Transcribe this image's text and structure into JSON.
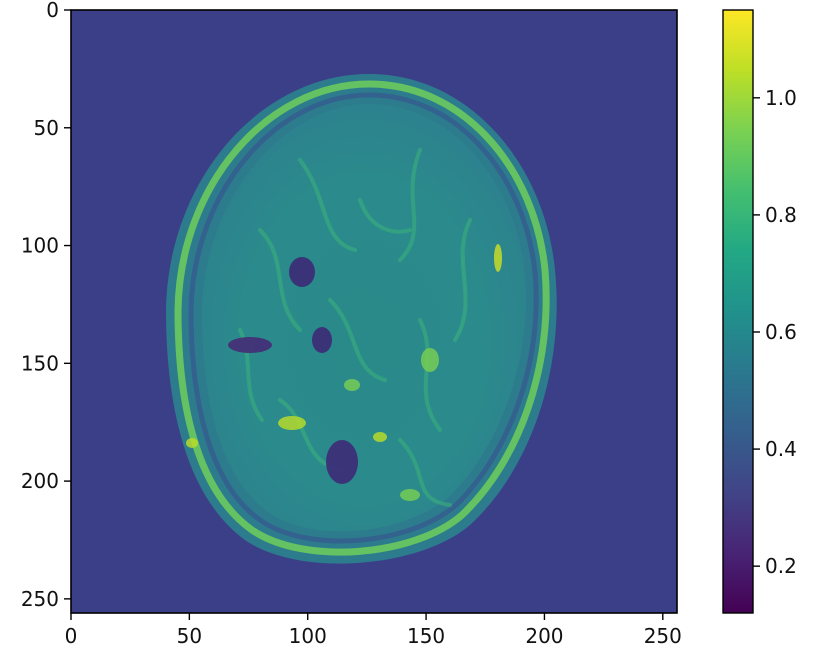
{
  "chart_data": {
    "type": "heatmap",
    "title": "",
    "xlabel": "",
    "ylabel": "",
    "image_description_kind": "axial brain MRI slice rendered with viridis colormap",
    "image_shape": [
      256,
      256
    ],
    "xlim": [
      0,
      256
    ],
    "ylim": [
      256,
      0
    ],
    "x_ticks": [
      0,
      50,
      100,
      150,
      200,
      250
    ],
    "y_ticks": [
      0,
      50,
      100,
      150,
      200,
      250
    ],
    "x_tick_labels": [
      "0",
      "50",
      "100",
      "150",
      "200",
      "250"
    ],
    "y_tick_labels": [
      "0",
      "50",
      "100",
      "150",
      "200",
      "250"
    ],
    "colormap": "viridis",
    "colorbar": {
      "vmin": 0.12,
      "vmax": 1.15,
      "ticks": [
        0.2,
        0.4,
        0.6,
        0.8,
        1.0
      ],
      "tick_labels": [
        "0.2",
        "0.4",
        "0.6",
        "0.8",
        "1.0"
      ]
    },
    "background_value": 0.3,
    "viridis_stops": [
      "#440154",
      "#482475",
      "#414487",
      "#355f8d",
      "#2a788e",
      "#21918c",
      "#22a884",
      "#44bf70",
      "#7ad151",
      "#bddf26",
      "#fde725"
    ]
  }
}
